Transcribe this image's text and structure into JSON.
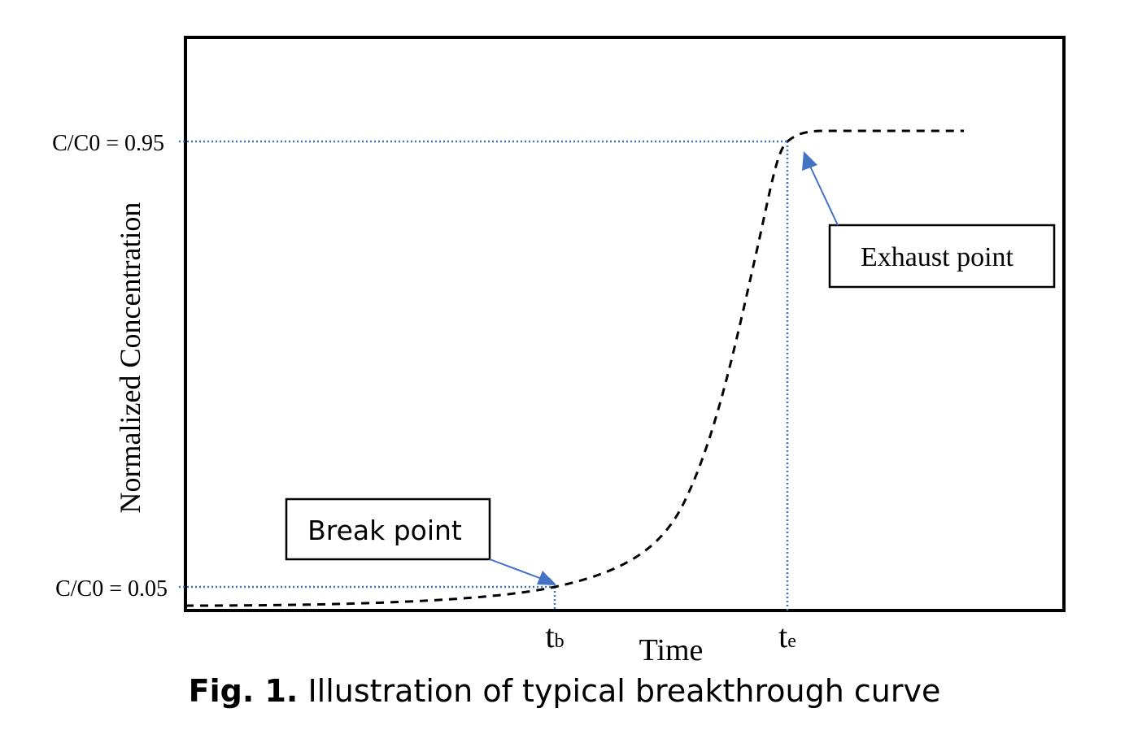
{
  "diagram": {
    "ylabel": "Normalized Concentration",
    "xlabel": "Time",
    "levels": {
      "upper": "C/C0 = 0.95",
      "lower": "C/C0 = 0.05"
    },
    "time_marks": {
      "break": {
        "base": "t",
        "sub": "b"
      },
      "exhaust": {
        "base": "t",
        "sub": "e"
      }
    },
    "annotations": {
      "break_point": "Break point",
      "exhaust_point": "Exhaust point"
    },
    "colors": {
      "curve": "#000000",
      "guide": "#4472c4",
      "arrow": "#4472c4",
      "frame": "#000000"
    }
  },
  "caption": {
    "label": "Fig. 1.",
    "text": " Illustration of typical breakthrough curve"
  }
}
